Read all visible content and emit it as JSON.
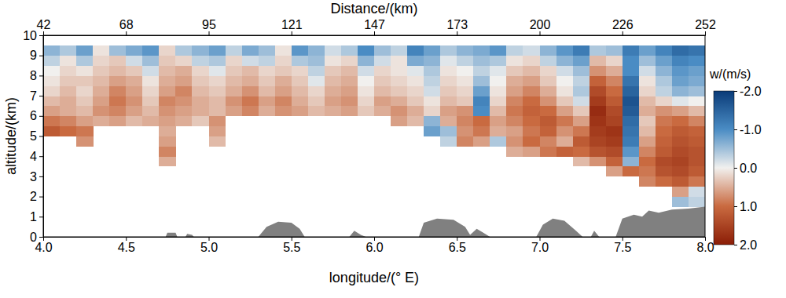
{
  "chart_data": {
    "type": "heatmap",
    "xlabel": "longitude/(° E)",
    "ylabel": "altitude/(km)",
    "x2label": "Distance/(km)",
    "xlim": [
      4,
      8
    ],
    "xticks": [
      {
        "value": 4,
        "label": "4.0"
      },
      4.5,
      {
        "value": 5,
        "label": "5.0"
      },
      5.5,
      {
        "value": 6,
        "label": "6.0"
      },
      6.5,
      {
        "value": 7,
        "label": "7.0"
      },
      7.5,
      {
        "value": 8,
        "label": "8.0"
      }
    ],
    "ylim": [
      0,
      10
    ],
    "yticks": [
      0,
      1,
      2,
      3,
      4,
      5,
      6,
      7,
      8,
      9,
      10
    ],
    "x2lim": [
      42,
      252
    ],
    "x2ticks": [
      42,
      {
        "value": 68.25,
        "label": "68"
      },
      {
        "value": 94.5,
        "label": "95"
      },
      {
        "value": 120.75,
        "label": "121"
      },
      147,
      {
        "value": 173.25,
        "label": "173"
      },
      {
        "value": 199.5,
        "label": "200"
      },
      {
        "value": 225.75,
        "label": "226"
      },
      252
    ],
    "x_edges": [
      4.0,
      4.1,
      4.2,
      4.3,
      4.4,
      4.5,
      4.6,
      4.7,
      4.8,
      4.9,
      5.0,
      5.1,
      5.2,
      5.3,
      5.4,
      5.5,
      5.6,
      5.7,
      5.8,
      5.9,
      6.0,
      6.1,
      6.2,
      6.3,
      6.4,
      6.5,
      6.6,
      6.7,
      6.8,
      6.9,
      7.0,
      7.1,
      7.2,
      7.3,
      7.4,
      7.5,
      7.6,
      7.7,
      7.8,
      7.9,
      8.0
    ],
    "y_edges": [
      0,
      0.5,
      1,
      1.5,
      2,
      2.5,
      3,
      3.5,
      4,
      4.5,
      5,
      5.5,
      6,
      6.5,
      7,
      7.5,
      8,
      8.5,
      9,
      9.5
    ],
    "z": [
      [
        null,
        null,
        null,
        null,
        null,
        null,
        null,
        null,
        null,
        null,
        null,
        null,
        null,
        null,
        null,
        null,
        null,
        null,
        null,
        null,
        null,
        null,
        null,
        null,
        null,
        null,
        null,
        null,
        null,
        null,
        null,
        null,
        null,
        null,
        null,
        null,
        null,
        null,
        null,
        null
      ],
      [
        null,
        null,
        null,
        null,
        null,
        null,
        null,
        null,
        null,
        null,
        null,
        null,
        null,
        null,
        null,
        null,
        null,
        null,
        null,
        null,
        null,
        null,
        null,
        null,
        null,
        null,
        null,
        null,
        null,
        null,
        null,
        null,
        null,
        null,
        null,
        null,
        null,
        null,
        null,
        null
      ],
      [
        null,
        null,
        null,
        null,
        null,
        null,
        null,
        null,
        null,
        null,
        null,
        null,
        null,
        null,
        null,
        null,
        null,
        null,
        null,
        null,
        null,
        null,
        null,
        null,
        null,
        null,
        null,
        null,
        null,
        null,
        null,
        null,
        null,
        null,
        null,
        null,
        null,
        null,
        null,
        null
      ],
      [
        null,
        null,
        null,
        null,
        null,
        null,
        null,
        null,
        null,
        null,
        null,
        null,
        null,
        null,
        null,
        null,
        null,
        null,
        null,
        null,
        null,
        null,
        null,
        null,
        null,
        null,
        null,
        null,
        null,
        null,
        null,
        null,
        null,
        null,
        null,
        null,
        null,
        null,
        -0.5,
        -0.3
      ],
      [
        null,
        null,
        null,
        null,
        null,
        null,
        null,
        null,
        null,
        null,
        null,
        null,
        null,
        null,
        null,
        null,
        null,
        null,
        null,
        null,
        null,
        null,
        null,
        null,
        null,
        null,
        null,
        null,
        null,
        null,
        null,
        null,
        null,
        null,
        null,
        null,
        null,
        null,
        0.6,
        -0.2
      ],
      [
        null,
        null,
        null,
        null,
        null,
        null,
        null,
        null,
        null,
        null,
        null,
        null,
        null,
        null,
        null,
        null,
        null,
        null,
        null,
        null,
        null,
        null,
        null,
        null,
        null,
        null,
        null,
        null,
        null,
        null,
        null,
        null,
        null,
        null,
        null,
        null,
        0.8,
        1.0,
        1.2,
        0.9
      ],
      [
        null,
        null,
        null,
        null,
        null,
        null,
        null,
        null,
        null,
        null,
        null,
        null,
        null,
        null,
        null,
        null,
        null,
        null,
        null,
        null,
        null,
        null,
        null,
        null,
        null,
        null,
        null,
        null,
        null,
        null,
        null,
        null,
        null,
        null,
        0.6,
        1.0,
        0.9,
        1.3,
        1.4,
        1.2
      ],
      [
        null,
        null,
        null,
        null,
        null,
        null,
        null,
        0.5,
        null,
        null,
        null,
        null,
        null,
        null,
        null,
        null,
        null,
        null,
        null,
        null,
        null,
        null,
        null,
        null,
        null,
        null,
        null,
        null,
        null,
        null,
        null,
        null,
        0.4,
        0.7,
        1.1,
        -0.6,
        1.0,
        1.4,
        1.5,
        1.3
      ],
      [
        null,
        null,
        null,
        null,
        null,
        null,
        null,
        0.8,
        null,
        null,
        null,
        null,
        null,
        null,
        null,
        null,
        null,
        null,
        null,
        null,
        null,
        null,
        null,
        null,
        null,
        null,
        null,
        null,
        0.5,
        0.6,
        0.9,
        1.1,
        1.0,
        1.3,
        1.4,
        -0.9,
        0.8,
        1.2,
        1.4,
        1.3
      ],
      [
        null,
        null,
        0.7,
        null,
        null,
        null,
        null,
        0.6,
        null,
        null,
        0.4,
        null,
        null,
        null,
        null,
        null,
        null,
        null,
        null,
        null,
        null,
        null,
        null,
        null,
        -0.3,
        0.8,
        0.6,
        -0.4,
        0.7,
        1.0,
        0.8,
        0.5,
        1.2,
        1.5,
        1.6,
        -1.2,
        0.6,
        1.1,
        1.3,
        1.2
      ],
      [
        1.2,
        1.0,
        0.9,
        null,
        null,
        null,
        null,
        0.5,
        null,
        null,
        0.6,
        null,
        null,
        null,
        null,
        null,
        null,
        null,
        null,
        null,
        null,
        null,
        null,
        -0.8,
        -0.5,
        0.7,
        0.9,
        0.5,
        0.6,
        0.9,
        1.1,
        0.7,
        0.9,
        1.6,
        1.7,
        -1.3,
        0.4,
        1.0,
        1.2,
        1.1
      ],
      [
        0.9,
        0.8,
        0.6,
        0.5,
        0.6,
        0.4,
        0.5,
        0.6,
        0.5,
        0.3,
        0.7,
        null,
        null,
        null,
        null,
        null,
        null,
        null,
        null,
        null,
        null,
        0.6,
        0.4,
        -0.6,
        0.5,
        0.8,
        1.0,
        0.6,
        0.8,
        1.0,
        1.2,
        0.9,
        0.6,
        1.7,
        1.5,
        -1.4,
        0.3,
        0.9,
        1.0,
        0.8
      ],
      [
        0.6,
        0.5,
        0.4,
        0.7,
        0.8,
        0.6,
        0.4,
        0.7,
        0.6,
        0.5,
        0.4,
        0.6,
        0.8,
        0.5,
        0.7,
        0.6,
        0.4,
        0.5,
        0.6,
        0.3,
        0.5,
        0.7,
        0.5,
        0.2,
        0.6,
        0.7,
        -1.0,
        0.4,
        0.9,
        1.1,
        1.0,
        0.6,
        0.3,
        1.8,
        1.4,
        -1.6,
        0.5,
        0.7,
        0.6,
        0.4
      ],
      [
        0.4,
        0.5,
        0.3,
        0.6,
        0.9,
        0.7,
        0.3,
        0.8,
        0.7,
        0.5,
        0.4,
        0.7,
        0.9,
        0.6,
        0.8,
        0.5,
        0.3,
        0.6,
        0.7,
        0.2,
        0.6,
        0.5,
        0.3,
        0.1,
        0.4,
        0.3,
        -1.1,
        0.2,
        0.8,
        1.0,
        0.7,
        0.3,
        -0.2,
        1.6,
        1.2,
        -1.7,
        0.4,
        0.2,
        -0.1,
        0.0
      ],
      [
        0.2,
        0.4,
        0.2,
        0.5,
        0.8,
        0.6,
        0.2,
        0.6,
        0.8,
        0.4,
        0.3,
        0.5,
        0.7,
        0.4,
        0.6,
        0.4,
        0.2,
        0.5,
        0.6,
        0.1,
        0.4,
        0.3,
        0.2,
        -0.2,
        0.3,
        0.2,
        -0.8,
        0.1,
        0.6,
        0.8,
        0.5,
        0.1,
        -0.4,
        1.4,
        1.0,
        -1.5,
        0.2,
        -0.3,
        -0.6,
        -0.5
      ],
      [
        0.1,
        0.3,
        0.3,
        0.4,
        0.6,
        0.5,
        0.1,
        0.5,
        0.6,
        0.3,
        0.2,
        0.4,
        0.5,
        0.3,
        0.5,
        0.3,
        -0.1,
        0.4,
        0.5,
        0.0,
        0.3,
        0.2,
        0.1,
        -0.3,
        0.2,
        0.1,
        -0.5,
        0.0,
        0.5,
        0.6,
        0.3,
        0.0,
        -0.3,
        1.1,
        0.8,
        -1.3,
        0.1,
        -0.4,
        -0.8,
        -0.7
      ],
      [
        0.0,
        0.2,
        0.1,
        0.3,
        0.4,
        0.3,
        -0.2,
        0.4,
        0.5,
        0.2,
        -0.1,
        0.3,
        0.4,
        0.2,
        0.3,
        0.2,
        -0.3,
        0.3,
        0.4,
        -0.2,
        0.2,
        0.1,
        -0.1,
        -0.4,
        0.1,
        0.0,
        -0.3,
        -0.1,
        0.3,
        0.4,
        0.2,
        -0.2,
        -0.5,
        0.7,
        0.5,
        -1.0,
        -0.2,
        -0.6,
        -0.9,
        -0.8
      ],
      [
        -0.3,
        0.1,
        -0.4,
        0.2,
        0.3,
        -0.2,
        -0.5,
        0.3,
        0.2,
        -0.3,
        -0.4,
        0.2,
        -0.2,
        -0.3,
        0.2,
        -0.4,
        -0.5,
        0.1,
        0.2,
        -0.6,
        -0.2,
        0.1,
        -0.7,
        -0.6,
        -0.1,
        -0.3,
        -0.5,
        -0.4,
        0.1,
        0.2,
        -0.3,
        -0.6,
        -0.8,
        0.4,
        0.2,
        -1.0,
        -0.5,
        -0.8,
        -1.1,
        -1.0
      ],
      [
        -0.6,
        -0.4,
        -0.8,
        0.1,
        -0.5,
        -0.7,
        -0.9,
        0.2,
        -0.4,
        -0.6,
        -0.8,
        -0.3,
        -0.7,
        -0.5,
        0.1,
        -0.9,
        -0.6,
        -0.2,
        -0.4,
        -1.0,
        -0.5,
        -0.3,
        -1.1,
        -0.8,
        -0.4,
        -0.6,
        -0.7,
        -0.9,
        -0.3,
        -0.2,
        -0.6,
        -0.9,
        -1.2,
        -0.4,
        -0.5,
        -1.2,
        -0.8,
        -1.1,
        -1.4,
        -1.3
      ]
    ],
    "colorbar": {
      "label": "w/(m/s)",
      "range": [
        -2,
        2
      ],
      "ticks": [
        {
          "value": -2,
          "label": "-2.0"
        },
        {
          "value": -1,
          "label": "-1.0"
        },
        {
          "value": 0,
          "label": "0.0"
        },
        {
          "value": 1,
          "label": "1.0"
        },
        {
          "value": 2,
          "label": "2.0"
        }
      ],
      "colors": [
        "#0a3b78",
        "#4a8cc4",
        "#f1f0ee",
        "#c96a40",
        "#8b1d06"
      ]
    },
    "series": [
      {
        "type": "area",
        "color": "#808080",
        "x": [
          4.74,
          4.75,
          4.8,
          4.81,
          4.86,
          4.87,
          4.9,
          4.91,
          5.3,
          5.35,
          5.42,
          5.5,
          5.55,
          5.58,
          5.85,
          5.88,
          5.92,
          5.95,
          6.27,
          6.3,
          6.38,
          6.48,
          6.55,
          6.58,
          6.62,
          6.66,
          6.7,
          6.98,
          7.02,
          7.08,
          7.15,
          7.22,
          7.26,
          7.31,
          7.33,
          7.36,
          7.46,
          7.5,
          7.57,
          7.62,
          7.66,
          7.72,
          7.8,
          7.9,
          8.0
        ],
        "values": [
          0,
          0.2,
          0.2,
          0,
          0,
          0.15,
          0.1,
          0,
          0,
          0.5,
          0.75,
          0.7,
          0.4,
          0,
          0,
          0.3,
          0.1,
          0,
          0,
          0.7,
          0.9,
          0.85,
          0.5,
          0.1,
          0.4,
          0.2,
          0,
          0,
          0.6,
          0.9,
          0.8,
          0.3,
          0,
          0,
          0.3,
          0,
          0,
          0.9,
          1.1,
          1.0,
          1.3,
          1.2,
          1.35,
          1.4,
          1.5
        ]
      }
    ]
  }
}
